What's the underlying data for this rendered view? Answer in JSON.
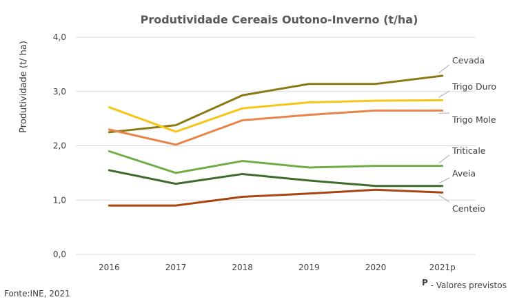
{
  "chart_data": {
    "type": "line",
    "title": "Produtividade Cereais Outono-Inverno (t/ha)",
    "ylabel": "Produtividade (t/ ha)",
    "xlabel": "",
    "categories": [
      "2016",
      "2017",
      "2018",
      "2019",
      "2020",
      "2021p"
    ],
    "ylim": [
      0,
      4
    ],
    "yticks": [
      "0,0",
      "1,0",
      "2,0",
      "3,0",
      "4,0"
    ],
    "grid": true,
    "legend": "series labels at right end of lines",
    "series": [
      {
        "name": "Cevada",
        "color": "#8b7a14",
        "values": [
          2.25,
          2.38,
          2.93,
          3.14,
          3.14,
          3.29
        ]
      },
      {
        "name": "Trigo Duro",
        "color": "#f5c518",
        "values": [
          2.71,
          2.26,
          2.69,
          2.8,
          2.83,
          2.84
        ]
      },
      {
        "name": "Trigo Mole",
        "color": "#e8834a",
        "values": [
          2.3,
          2.02,
          2.47,
          2.57,
          2.65,
          2.65
        ]
      },
      {
        "name": "Triticale",
        "color": "#70ad47",
        "values": [
          1.9,
          1.5,
          1.72,
          1.6,
          1.63,
          1.63
        ]
      },
      {
        "name": "Aveia",
        "color": "#3d6b2b",
        "values": [
          1.55,
          1.3,
          1.48,
          1.36,
          1.26,
          1.26
        ]
      },
      {
        "name": "Centeio",
        "color": "#a9440e",
        "values": [
          0.9,
          0.9,
          1.06,
          1.12,
          1.19,
          1.14
        ]
      }
    ]
  },
  "footer": {
    "source": "Fonte:INE, 2021",
    "forecast_mark": "P",
    "forecast_note": " - Valores previstos"
  }
}
